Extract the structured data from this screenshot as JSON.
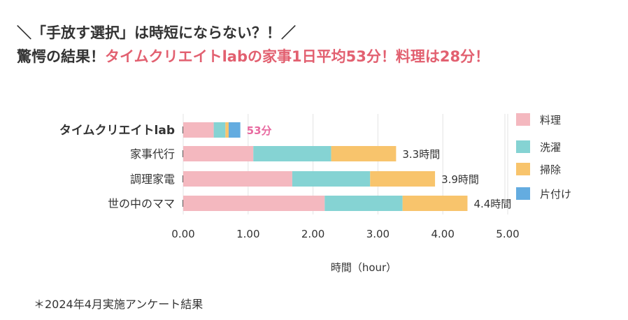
{
  "headline": {
    "line1": "＼「手放す選択」は時短にならない？！／",
    "line2_prefix": "驚愕の結果！",
    "line2_accent_a": "タイムクリエイトlabの家事",
    "line2_accent_b": "1日平均53分！料理は",
    "line2_accent_c": "28分！"
  },
  "footnote": "＊2024年4月実施アンケート結果",
  "chart_data": {
    "type": "bar",
    "orientation": "horizontal",
    "stacked": true,
    "categories": [
      "タイムクリエイトlab",
      "家事代行",
      "調理家電",
      "世の中のママ"
    ],
    "series": [
      {
        "name": "料理",
        "color": "#f4b8bf",
        "values": [
          0.47,
          1.08,
          1.68,
          2.18
        ]
      },
      {
        "name": "洗濯",
        "color": "#85d3d3",
        "values": [
          0.18,
          1.2,
          1.2,
          1.2
        ]
      },
      {
        "name": "掃除",
        "color": "#f8c46c",
        "values": [
          0.05,
          1.0,
          1.0,
          1.0
        ]
      },
      {
        "name": "片付け",
        "color": "#64ace0",
        "values": [
          0.18,
          0,
          0,
          0
        ]
      }
    ],
    "bar_labels": [
      "53分",
      "3.3時間",
      "3.9時間",
      "4.4時間"
    ],
    "bar_label_colors": [
      "#e86aa0",
      "#333333",
      "#333333",
      "#333333"
    ],
    "xlabel": "時間（hour）",
    "xlim": [
      0,
      5
    ],
    "xticks": [
      "0.00",
      "1.00",
      "2.00",
      "3.00",
      "4.00",
      "5.00"
    ],
    "grid": "vertical",
    "legend": "right"
  }
}
